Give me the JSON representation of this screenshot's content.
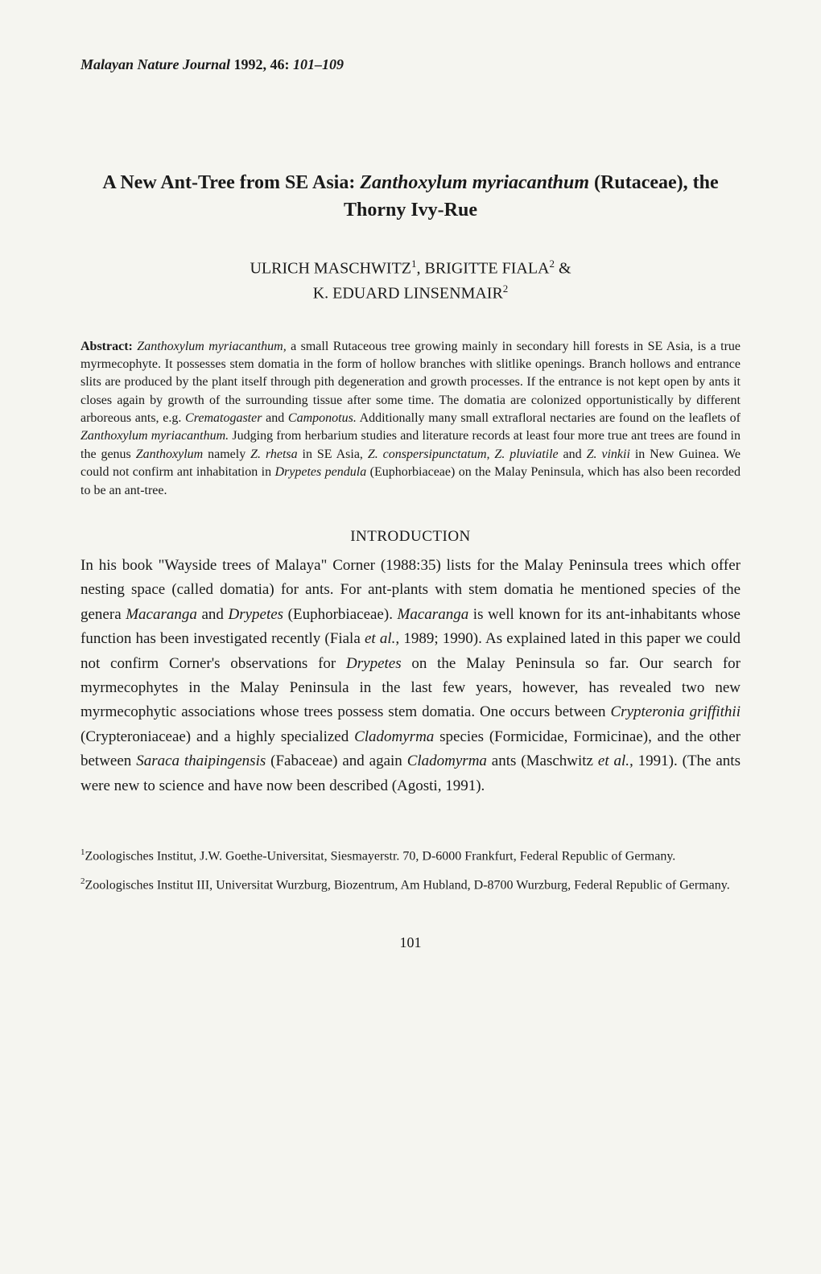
{
  "journal": {
    "name": "Malayan Nature Journal",
    "year": "1992,",
    "volume": "46:",
    "pages": "101–109"
  },
  "title": {
    "prefix": "A New Ant-Tree from SE Asia: ",
    "species": "Zanthoxylum myriacanthum",
    "suffix": " (Rutaceae), the Thorny Ivy-Rue"
  },
  "authors": {
    "line1_name1": "ULRICH MASCHWITZ",
    "line1_sup1": "1",
    "line1_sep": ", ",
    "line1_name2": "BRIGITTE FIALA",
    "line1_sup2": "2",
    "line1_amp": " &",
    "line2_name": "K. EDUARD LINSENMAIR",
    "line2_sup": "2"
  },
  "abstract": {
    "label": "Abstract: ",
    "text_part1": "Zanthoxylum myriacanthum,",
    "text_part2": " a small Rutaceous tree growing mainly in secondary hill forests in SE Asia, is a true myrmecophyte. It possesses stem domatia in the form of hollow branches with slitlike openings. Branch hollows and entrance slits are produced by the plant itself through pith degeneration and growth processes. If the entrance is not kept open by ants it closes again by growth of the surrounding tissue after some time. The domatia are colonized opportunistically by different arboreous ants, e.g. ",
    "text_part3": "Crematogaster",
    "text_part4": " and ",
    "text_part5": "Camponotus.",
    "text_part6": " Additionally many small extrafloral nectaries are found on the leaflets of ",
    "text_part7": "Zanthoxylum myriacanthum.",
    "text_part8": " Judging from herbarium studies and literature records at least four more true ant trees are found in the genus ",
    "text_part9": "Zanthoxylum",
    "text_part10": " namely ",
    "text_part11": "Z. rhetsa",
    "text_part12": " in SE Asia, ",
    "text_part13": "Z. conspersipunctatum, Z. pluviatile",
    "text_part14": " and ",
    "text_part15": "Z. vinkii",
    "text_part16": " in New Guinea. We could not confirm ant inhabitation in ",
    "text_part17": "Drypetes pendula",
    "text_part18": " (Euphorbiaceae) on the Malay Peninsula, which has also been recorded to be an ant-tree."
  },
  "section_heading": "INTRODUCTION",
  "body": {
    "p1": "In his book \"Wayside trees of Malaya\" Corner (1988:35) lists for the Malay Peninsula trees which offer nesting space (called domatia) for ants. For ant-plants with stem domatia he mentioned species of the genera ",
    "p2": "Macaranga",
    "p3": " and ",
    "p4": "Drypetes",
    "p5": " (Euphorbiaceae). ",
    "p6": "Macaranga",
    "p7": " is well known for its ant-inhabitants whose function has been investigated recently (Fiala ",
    "p8": "et al.,",
    "p9": " 1989; 1990). As explained lated in this paper we could not confirm Corner's observations for ",
    "p10": "Drypetes",
    "p11": " on the Malay Peninsula so far. Our search for myrmecophytes in the Malay Peninsula in the last few years, however, has revealed two new myrmecophytic associations whose trees possess stem domatia. One occurs between ",
    "p12": "Crypteronia griffithii",
    "p13": " (Crypteroniaceae) and a highly specialized ",
    "p14": "Cladomyrma",
    "p15": " species (Formicidae, Formicinae), and the other between ",
    "p16": "Saraca thaipingensis",
    "p17": " (Fabaceae) and again ",
    "p18": "Cladomyrma",
    "p19": " ants (Maschwitz ",
    "p20": "et al.,",
    "p21": " 1991). (The ants were new to science and have now been described (Agosti, 1991)."
  },
  "footnotes": {
    "f1_sup": "1",
    "f1_text": "Zoologisches Institut, J.W. Goethe-Universitat, Siesmayerstr. 70, D-6000 Frankfurt, Federal Republic of Germany.",
    "f2_sup": "2",
    "f2_text": "Zoologisches Institut III, Universitat Wurzburg, Biozentrum, Am Hubland, D-8700 Wurzburg, Federal Republic of Germany."
  },
  "page_number": "101"
}
